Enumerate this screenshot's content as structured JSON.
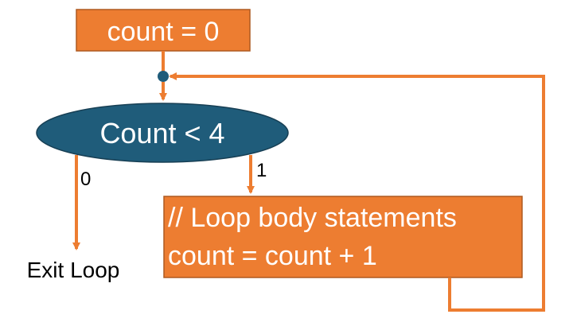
{
  "colors": {
    "box_fill": "#ED7D31",
    "box_stroke": "#AE5A21",
    "decision_fill": "#1F5C7A",
    "decision_stroke": "#173F54",
    "arrow": "#ED7D31",
    "junction": "#1F5C7A",
    "text_light": "#FFFFFF",
    "text_dark": "#000000"
  },
  "nodes": {
    "init": {
      "label": "count = 0"
    },
    "decision": {
      "label": "Count < 4"
    },
    "body": {
      "line1": "// Loop body statements",
      "line2": "count = count + 1"
    },
    "exit": {
      "label": "Exit Loop"
    }
  },
  "edges": {
    "false_branch": {
      "label": "0"
    },
    "true_branch": {
      "label": "1"
    }
  }
}
